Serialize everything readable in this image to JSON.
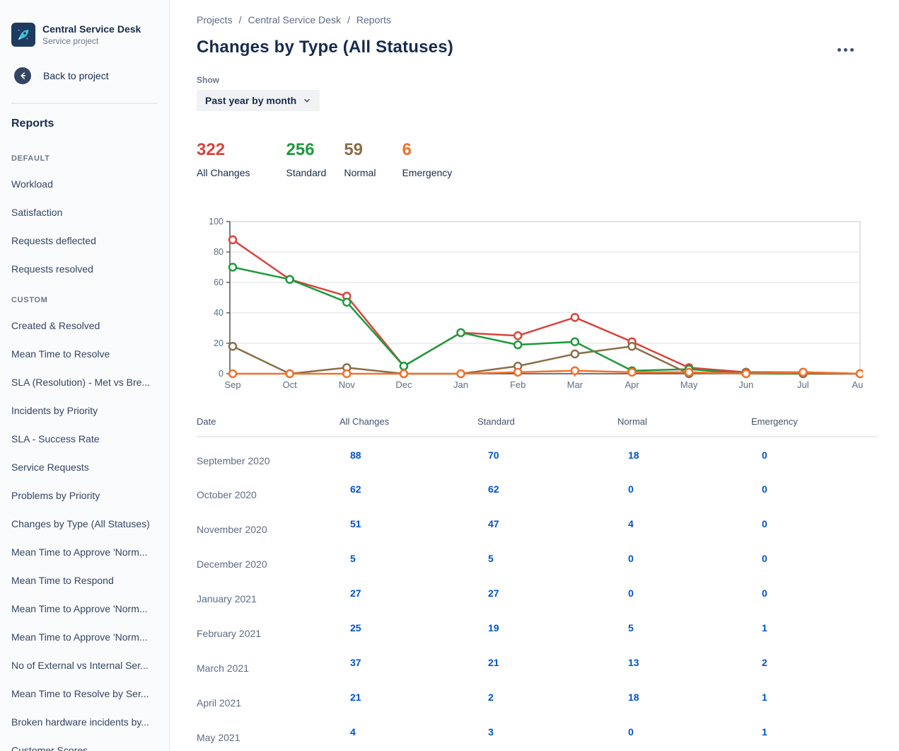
{
  "sidebar": {
    "project_name": "Central Service Desk",
    "project_type": "Service project",
    "back_label": "Back to project",
    "reports_title": "Reports",
    "sections": [
      {
        "label": "DEFAULT",
        "items": [
          "Workload",
          "Satisfaction",
          "Requests deflected",
          "Requests resolved"
        ]
      },
      {
        "label": "CUSTOM",
        "items": [
          "Created & Resolved",
          "Mean Time to Resolve",
          "SLA (Resolution) - Met vs Bre...",
          "Incidents by Priority",
          "SLA - Success Rate",
          "Service Requests",
          "Problems by Priority",
          "Changes by Type (All Statuses)",
          "Mean Time to Approve 'Norm...",
          "Mean Time to Respond",
          "Mean Time to Approve 'Norm...",
          "Mean Time to Approve 'Norm...",
          "No of External vs Internal Ser...",
          "Mean Time to Resolve by Ser...",
          "Broken hardware incidents by...",
          "Customer Scores"
        ]
      }
    ]
  },
  "breadcrumb": {
    "items": [
      "Projects",
      "Central Service Desk",
      "Reports"
    ],
    "separator": "/"
  },
  "page": {
    "title": "Changes by Type (All Statuses)"
  },
  "filter": {
    "label": "Show",
    "value": "Past year by month"
  },
  "stats": [
    {
      "value": "322",
      "label": "All Changes",
      "color": "#d6453d"
    },
    {
      "value": "256",
      "label": "Standard",
      "color": "#1f9a3f"
    },
    {
      "value": "59",
      "label": "Normal",
      "color": "#8b6e48"
    },
    {
      "value": "6",
      "label": "Emergency",
      "color": "#f1712c"
    }
  ],
  "chart_data": {
    "type": "line",
    "x": [
      "Sep",
      "Oct",
      "Nov",
      "Dec",
      "Jan",
      "Feb",
      "Mar",
      "Apr",
      "May",
      "Jun",
      "Jul",
      "Aug"
    ],
    "series": [
      {
        "name": "All Changes",
        "color": "#d6453d",
        "values": [
          88,
          62,
          51,
          5,
          27,
          25,
          37,
          21,
          4,
          1,
          1,
          0
        ]
      },
      {
        "name": "Standard",
        "color": "#1f9a3f",
        "values": [
          70,
          62,
          47,
          5,
          27,
          19,
          21,
          2,
          3,
          0,
          0,
          0
        ]
      },
      {
        "name": "Normal",
        "color": "#8b6e48",
        "values": [
          18,
          0,
          4,
          0,
          0,
          5,
          13,
          18,
          0,
          1,
          0,
          0
        ]
      },
      {
        "name": "Emergency",
        "color": "#f1712c",
        "values": [
          0,
          0,
          0,
          0,
          0,
          1,
          2,
          1,
          1,
          0,
          1,
          0
        ]
      }
    ],
    "ylim": [
      0,
      100
    ],
    "yticks": [
      0,
      20,
      40,
      60,
      80,
      100
    ],
    "grid": true,
    "legend": "none",
    "axis_color": "#44474c",
    "grid_color": "#dcdfe3",
    "tick_label_color": "#5e6c84"
  },
  "table": {
    "columns": [
      "Date",
      "All Changes",
      "Standard",
      "Normal",
      "Emergency"
    ],
    "rows": [
      {
        "date": "September 2020",
        "values": [
          "88",
          "70",
          "18",
          "0"
        ]
      },
      {
        "date": "October 2020",
        "values": [
          "62",
          "62",
          "0",
          "0"
        ]
      },
      {
        "date": "November 2020",
        "values": [
          "51",
          "47",
          "4",
          "0"
        ]
      },
      {
        "date": "December 2020",
        "values": [
          "5",
          "5",
          "0",
          "0"
        ]
      },
      {
        "date": "January 2021",
        "values": [
          "27",
          "27",
          "0",
          "0"
        ]
      },
      {
        "date": "February 2021",
        "values": [
          "25",
          "19",
          "5",
          "1"
        ]
      },
      {
        "date": "March 2021",
        "values": [
          "37",
          "21",
          "13",
          "2"
        ]
      },
      {
        "date": "April 2021",
        "values": [
          "21",
          "2",
          "18",
          "1"
        ]
      },
      {
        "date": "May 2021",
        "values": [
          "4",
          "3",
          "0",
          "1"
        ]
      }
    ]
  }
}
